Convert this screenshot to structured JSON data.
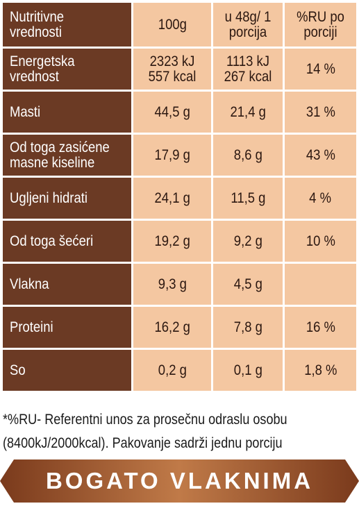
{
  "header": {
    "col1": [
      "Nutritivne",
      "vrednosti"
    ],
    "col2": "100g",
    "col3": [
      "u 48g/",
      "1 porcija"
    ],
    "col4": [
      "%RU",
      "po porciji"
    ]
  },
  "rows": [
    {
      "label": [
        "Energetska",
        "vrednost"
      ],
      "per100": [
        "2323 kJ",
        "557 kcal"
      ],
      "perPortion": [
        "1113 kJ",
        "267 kcal"
      ],
      "ru": "14 %"
    },
    {
      "label": [
        "Masti"
      ],
      "per100": [
        "44,5 g"
      ],
      "perPortion": [
        "21,4 g"
      ],
      "ru": "31 %"
    },
    {
      "label": [
        "Od toga zasićene",
        "masne kiseline"
      ],
      "per100": [
        "17,9 g"
      ],
      "perPortion": [
        "8,6 g"
      ],
      "ru": "43 %"
    },
    {
      "label": [
        "Ugljeni hidrati"
      ],
      "per100": [
        "24,1 g"
      ],
      "perPortion": [
        "11,5 g"
      ],
      "ru": "4 %"
    },
    {
      "label": [
        "Od toga šećeri"
      ],
      "per100": [
        "19,2 g"
      ],
      "perPortion": [
        "9,2 g"
      ],
      "ru": "10 %"
    },
    {
      "label": [
        "Vlakna"
      ],
      "per100": [
        "9,3 g"
      ],
      "perPortion": [
        "4,5 g"
      ],
      "ru": ""
    },
    {
      "label": [
        "Proteini"
      ],
      "per100": [
        "16,2 g"
      ],
      "perPortion": [
        "7,8 g"
      ],
      "ru": "16 %"
    },
    {
      "label": [
        "So"
      ],
      "per100": [
        "0,2 g"
      ],
      "perPortion": [
        "0,1 g"
      ],
      "ru": "1,8 %"
    }
  ],
  "footnote": {
    "line1": "*%RU- Referentni unos za prosečnu odraslu osobu",
    "line2": "(8400kJ/2000kcal). Pakovanje sadrži jednu porciju"
  },
  "banner": {
    "text": "BOGATO VLAKNIMA",
    "colors": {
      "start": "#7a3a1c",
      "mid": "#c07a48",
      "end": "#7a3a1c"
    }
  },
  "colors": {
    "label_bg": "#6b3a24",
    "value_bg": "#f4c7a1",
    "text_dark": "#2b1710"
  }
}
